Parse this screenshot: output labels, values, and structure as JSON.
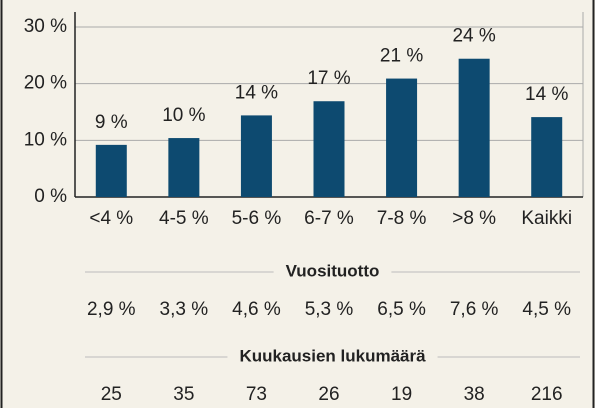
{
  "chart_data": {
    "type": "bar",
    "categories": [
      "<4 %",
      "4-5 %",
      "5-6 %",
      "6-7 %",
      "7-8 %",
      ">8 %",
      "Kaikki"
    ],
    "values": [
      9.2,
      10.4,
      14.4,
      16.9,
      20.9,
      24.4,
      14.1
    ],
    "value_labels": [
      "9 %",
      "10 %",
      "14 %",
      "17 %",
      "21 %",
      "24 %",
      "14 %"
    ],
    "color": "#0d4a70",
    "ylim": [
      0,
      30
    ],
    "yticks": [
      {
        "value": 0,
        "label": "0 %"
      },
      {
        "value": 10,
        "label": "10 %"
      },
      {
        "value": 20,
        "label": "20 %"
      },
      {
        "value": 30,
        "label": "30 %"
      }
    ],
    "grid": true
  },
  "table": {
    "sections": [
      {
        "title": "Vuosituotto",
        "values": [
          "2,9 %",
          "3,3 %",
          "4,6 %",
          "5,3 %",
          "6,5 %",
          "7,6 %",
          "4,5 %"
        ]
      },
      {
        "title": "Kuukausien lukumäärä",
        "values": [
          25,
          35,
          73,
          26,
          19,
          38,
          216
        ]
      }
    ]
  }
}
